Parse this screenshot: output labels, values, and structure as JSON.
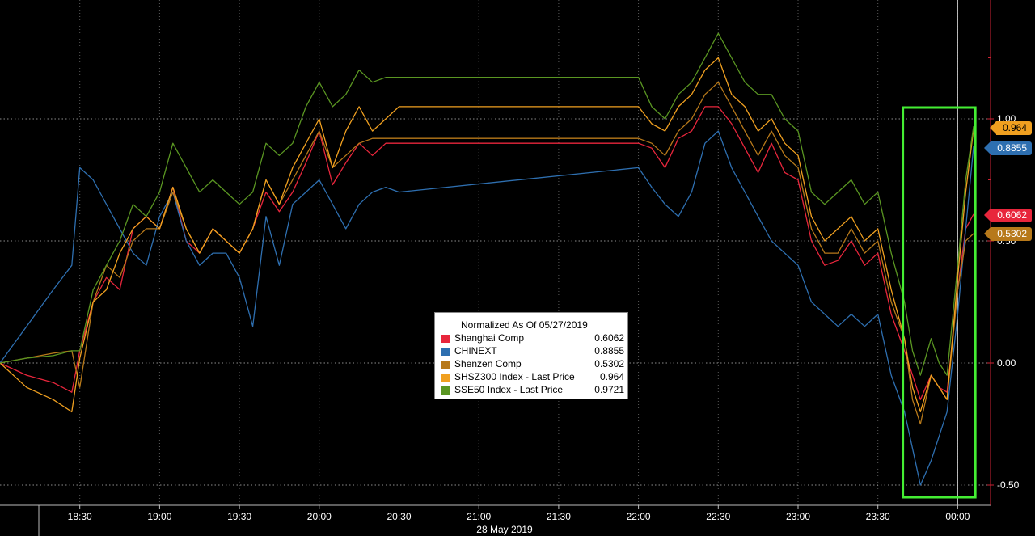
{
  "chart_data": {
    "type": "line",
    "title": "",
    "xlabel": "28 May 2019",
    "ylabel": "",
    "x_ticks": [
      "18:30",
      "19:00",
      "19:30",
      "20:00",
      "20:30",
      "21:00",
      "21:30",
      "22:00",
      "22:30",
      "23:00",
      "23:30",
      "00:00"
    ],
    "y_ticks": [
      "1.00",
      "0.50",
      "0.00",
      "-0.50"
    ],
    "ylim": [
      -0.6,
      1.5
    ],
    "grid": true,
    "legend_position": "center",
    "legend_title": "Normalized As Of 05/27/2019",
    "highlight_box": {
      "from": "23:40",
      "to": "00:06",
      "color": "#44ee33"
    },
    "x": [
      "18:00",
      "18:10",
      "18:20",
      "18:27",
      "18:30",
      "18:35",
      "18:40",
      "18:45",
      "18:50",
      "18:55",
      "19:00",
      "19:05",
      "19:10",
      "19:15",
      "19:20",
      "19:25",
      "19:30",
      "19:35",
      "19:40",
      "19:45",
      "19:50",
      "19:55",
      "20:00",
      "20:05",
      "20:10",
      "20:15",
      "20:20",
      "20:25",
      "20:30",
      "22:00",
      "22:05",
      "22:10",
      "22:15",
      "22:20",
      "22:25",
      "22:30",
      "22:35",
      "22:40",
      "22:45",
      "22:50",
      "22:55",
      "23:00",
      "23:05",
      "23:10",
      "23:15",
      "23:20",
      "23:25",
      "23:30",
      "23:35",
      "23:40",
      "23:43",
      "23:46",
      "23:50",
      "23:53",
      "23:56",
      "00:00",
      "00:03",
      "00:06"
    ],
    "series": [
      {
        "name": "Shanghai Comp",
        "color": "#e8263c",
        "values": [
          0.0,
          -0.05,
          -0.08,
          -0.12,
          0.05,
          0.25,
          0.35,
          0.3,
          0.55,
          0.6,
          0.55,
          0.72,
          0.5,
          0.45,
          0.55,
          0.5,
          0.45,
          0.55,
          0.7,
          0.62,
          0.7,
          0.82,
          0.95,
          0.73,
          0.82,
          0.9,
          0.85,
          0.9,
          0.9,
          0.9,
          0.88,
          0.8,
          0.92,
          0.95,
          1.05,
          1.05,
          0.98,
          0.88,
          0.78,
          0.9,
          0.78,
          0.75,
          0.5,
          0.4,
          0.42,
          0.5,
          0.4,
          0.45,
          0.2,
          0.05,
          -0.05,
          -0.15,
          -0.05,
          -0.1,
          -0.12,
          0.3,
          0.55,
          0.61
        ]
      },
      {
        "name": "CHINEXT",
        "color": "#2e6fb0",
        "values": [
          0.0,
          0.15,
          0.3,
          0.4,
          0.8,
          0.75,
          0.65,
          0.55,
          0.45,
          0.4,
          0.6,
          0.7,
          0.5,
          0.4,
          0.45,
          0.45,
          0.35,
          0.15,
          0.6,
          0.4,
          0.65,
          0.7,
          0.75,
          0.65,
          0.55,
          0.65,
          0.7,
          0.72,
          0.7,
          0.8,
          0.72,
          0.65,
          0.6,
          0.7,
          0.9,
          0.95,
          0.8,
          0.7,
          0.6,
          0.5,
          0.45,
          0.4,
          0.25,
          0.2,
          0.15,
          0.2,
          0.15,
          0.2,
          -0.05,
          -0.2,
          -0.35,
          -0.5,
          -0.4,
          -0.3,
          -0.2,
          0.2,
          0.55,
          0.89
        ]
      },
      {
        "name": "Shenzen Comp",
        "color": "#b7791a",
        "values": [
          0.0,
          0.02,
          0.04,
          0.05,
          -0.1,
          0.25,
          0.4,
          0.35,
          0.5,
          0.55,
          0.55,
          0.7,
          0.55,
          0.45,
          0.55,
          0.5,
          0.45,
          0.55,
          0.75,
          0.65,
          0.75,
          0.85,
          0.95,
          0.8,
          0.85,
          0.9,
          0.92,
          0.92,
          0.92,
          0.92,
          0.9,
          0.85,
          0.95,
          1.0,
          1.1,
          1.15,
          1.05,
          0.95,
          0.85,
          0.95,
          0.85,
          0.8,
          0.55,
          0.45,
          0.45,
          0.55,
          0.45,
          0.5,
          0.25,
          0.1,
          -0.15,
          -0.25,
          -0.05,
          -0.1,
          -0.15,
          0.3,
          0.5,
          0.53
        ]
      },
      {
        "name": "SHSZ300 Index - Last Price",
        "color": "#f0a020",
        "values": [
          0.0,
          -0.1,
          -0.15,
          -0.2,
          0.02,
          0.25,
          0.3,
          0.45,
          0.55,
          0.6,
          0.55,
          0.72,
          0.55,
          0.45,
          0.55,
          0.5,
          0.45,
          0.55,
          0.75,
          0.65,
          0.8,
          0.9,
          1.0,
          0.8,
          0.95,
          1.05,
          0.95,
          1.0,
          1.05,
          1.05,
          0.98,
          0.95,
          1.05,
          1.1,
          1.2,
          1.25,
          1.1,
          1.05,
          0.95,
          1.0,
          0.9,
          0.85,
          0.6,
          0.5,
          0.55,
          0.6,
          0.5,
          0.55,
          0.3,
          0.1,
          -0.1,
          -0.2,
          -0.05,
          -0.1,
          -0.15,
          0.35,
          0.7,
          0.96
        ]
      },
      {
        "name": "SSE50 Index - Last Price",
        "color": "#5a9622",
        "values": [
          0.0,
          0.02,
          0.03,
          0.05,
          0.05,
          0.3,
          0.4,
          0.5,
          0.65,
          0.6,
          0.7,
          0.9,
          0.8,
          0.7,
          0.75,
          0.7,
          0.65,
          0.7,
          0.9,
          0.85,
          0.9,
          1.05,
          1.15,
          1.05,
          1.1,
          1.2,
          1.15,
          1.17,
          1.17,
          1.17,
          1.05,
          1.0,
          1.1,
          1.15,
          1.25,
          1.35,
          1.25,
          1.15,
          1.1,
          1.1,
          1.0,
          0.95,
          0.7,
          0.65,
          0.7,
          0.75,
          0.65,
          0.7,
          0.45,
          0.25,
          0.05,
          -0.05,
          0.1,
          0.0,
          -0.05,
          0.4,
          0.75,
          0.97
        ]
      }
    ]
  },
  "legend": {
    "title": "Normalized As Of 05/27/2019",
    "items": [
      {
        "name": "Shanghai Comp",
        "value": "0.6062",
        "color": "#e8263c"
      },
      {
        "name": "CHINEXT",
        "value": "0.8855",
        "color": "#2e6fb0"
      },
      {
        "name": "Shenzen Comp",
        "value": "0.5302",
        "color": "#b7791a"
      },
      {
        "name": "SHSZ300 Index - Last Price",
        "value": "0.964",
        "color": "#f0a020"
      },
      {
        "name": "SSE50 Index - Last Price",
        "value": "0.9721",
        "color": "#5a9622"
      }
    ]
  },
  "badges": [
    {
      "value": "0.964",
      "color": "#f0a020",
      "text_color": "#000000"
    },
    {
      "value": "0.8855",
      "color": "#2e6fb0",
      "text_color": "#ffffff"
    },
    {
      "value": "0.6062",
      "color": "#e8263c",
      "text_color": "#ffffff"
    },
    {
      "value": "0.5302",
      "color": "#b7791a",
      "text_color": "#ffffff"
    }
  ]
}
